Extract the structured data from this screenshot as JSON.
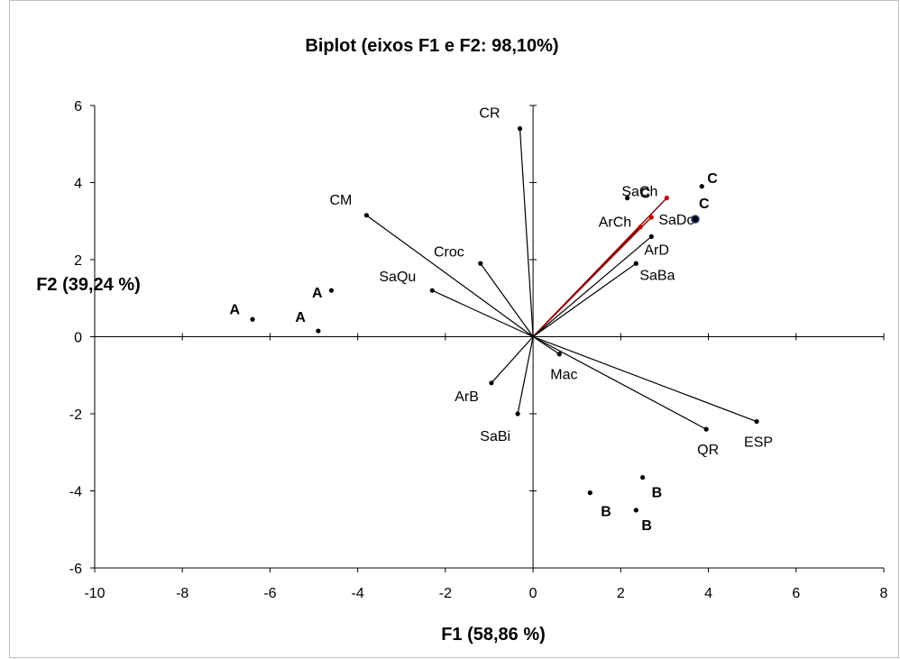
{
  "chart_data": {
    "type": "scatter",
    "title": "Biplot (eixos F1 e F2: 98,10%)",
    "xlabel": "F1 (58,86 %)",
    "ylabel": "F2 (39,24 %)",
    "xlim": [
      -10,
      8
    ],
    "ylim": [
      -6,
      6
    ],
    "xticks": [
      "-10",
      "-8",
      "-6",
      "-4",
      "-2",
      "0",
      "2",
      "4",
      "6",
      "8"
    ],
    "yticks": [
      "-6",
      "-4",
      "-2",
      "0",
      "2",
      "4",
      "6"
    ],
    "grid": false,
    "variables": [
      {
        "name": "CR",
        "x": -0.3,
        "y": 5.4
      },
      {
        "name": "CM",
        "x": -3.8,
        "y": 3.15
      },
      {
        "name": "Croc",
        "x": -1.2,
        "y": 1.9
      },
      {
        "name": "SaQu",
        "x": -2.3,
        "y": 1.2
      },
      {
        "name": "SaCh",
        "x": 3.05,
        "y": 3.6
      },
      {
        "name": "SaDo",
        "x": 2.7,
        "y": 3.1
      },
      {
        "name": "ArCh",
        "x": 2.45,
        "y": 2.85
      },
      {
        "name": "ArD",
        "x": 2.7,
        "y": 2.6
      },
      {
        "name": "SaBa",
        "x": 2.35,
        "y": 1.9
      },
      {
        "name": "Mac",
        "x": 0.6,
        "y": -0.45
      },
      {
        "name": "ArB",
        "x": -0.95,
        "y": -1.2
      },
      {
        "name": "SaBi",
        "x": -0.35,
        "y": -2.0
      },
      {
        "name": "QR",
        "x": 3.95,
        "y": -2.4
      },
      {
        "name": "ESP",
        "x": 5.1,
        "y": -2.2
      }
    ],
    "observations": [
      {
        "label": "A",
        "x": -6.4,
        "y": 0.45
      },
      {
        "label": "A",
        "x": -4.9,
        "y": 0.15
      },
      {
        "label": "A",
        "x": -4.6,
        "y": 1.2
      },
      {
        "label": "B",
        "x": 2.5,
        "y": -3.65
      },
      {
        "label": "B",
        "x": 1.3,
        "y": -4.05
      },
      {
        "label": "B",
        "x": 2.35,
        "y": -4.5
      },
      {
        "label": "C",
        "x": 2.15,
        "y": 3.6
      },
      {
        "label": "C",
        "x": 3.85,
        "y": 3.9
      },
      {
        "label": "C",
        "x": 3.7,
        "y": 3.05
      }
    ],
    "colors": {
      "axis": "#000000",
      "vector": "#000000",
      "highlight": "#c00000",
      "marker_outline": "#1f3d7a"
    }
  }
}
